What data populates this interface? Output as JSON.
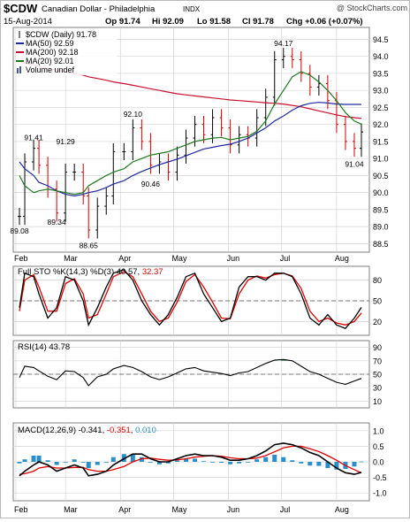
{
  "header": {
    "symbol": "$CDW",
    "name": "Canadian Dollar - Philadelphia",
    "exchange": "INDX",
    "watermark": "@ StockCharts.com",
    "date": "15-Aug-2014",
    "quote": {
      "op": "Op 91.74",
      "hi": "Hi 92.09",
      "lo": "Lo 91.58",
      "cl": "Cl 91.78",
      "chg": "Chg +0.06 (+0.07%)"
    }
  },
  "colors": {
    "price": "#000000",
    "up": "#000000",
    "down": "#cc0000",
    "ma50": "#1f2a9e",
    "ma200": "#c8102e",
    "ma20": "#1d7a1d",
    "stoK": "#000000",
    "stoD": "#e00000",
    "rsi": "#000000",
    "rsiFill": "#2e8b57",
    "macd": "#000000",
    "signal": "#e00000",
    "hist": "#2a8fc9",
    "grid": "#d4d4d4"
  },
  "legend": [
    {
      "key": "price",
      "text": "$CDW (Daily) 91.78",
      "color": "#000000",
      "icon": "candle-icon"
    },
    {
      "key": "ma50",
      "text": "MA(50) 92.59",
      "color": "#1f2a9e",
      "icon": "line-icon"
    },
    {
      "key": "ma200",
      "text": "MA(200) 92.18",
      "color": "#c8102e",
      "icon": "line-icon"
    },
    {
      "key": "ma20",
      "text": "MA(20) 92.01",
      "color": "#1d7a1d",
      "icon": "line-icon"
    },
    {
      "key": "volume",
      "text": "Volume undef",
      "color": "#4a5a86",
      "icon": "volume-bars-icon"
    }
  ],
  "sto_label": {
    "prefix": "Full STO %K(14,3) %D(3) ",
    "k": "40.57",
    "sep": ", ",
    "d": "32.37"
  },
  "rsi_label": "RSI(14) 43.78",
  "macd_label": {
    "prefix": "MACD(12,26,9) ",
    "macd": "-0.341",
    "sep1": ", ",
    "signal": "-0.351",
    "sep2": ", ",
    "hist": "0.010"
  },
  "chart_data": {
    "type": "line",
    "dates": [
      "2014-02-03",
      "2014-02-06",
      "2014-02-11",
      "2014-02-14",
      "2014-02-19",
      "2014-02-24",
      "2014-03-01",
      "2014-03-06",
      "2014-03-11",
      "2014-03-14",
      "2014-03-19",
      "2014-03-24",
      "2014-03-28",
      "2014-04-03",
      "2014-04-08",
      "2014-04-13",
      "2014-04-18",
      "2014-04-23",
      "2014-04-28",
      "2014-05-03",
      "2014-05-08",
      "2014-05-13",
      "2014-05-18",
      "2014-05-23",
      "2014-05-28",
      "2014-06-02",
      "2014-06-07",
      "2014-06-12",
      "2014-06-17",
      "2014-06-22",
      "2014-06-27",
      "2014-07-02",
      "2014-07-07",
      "2014-07-12",
      "2014-07-17",
      "2014-07-22",
      "2014-07-27",
      "2014-08-01",
      "2014-08-06",
      "2014-08-11",
      "2014-08-15"
    ],
    "x_ticks": [
      "Feb",
      "Mar",
      "Apr",
      "May",
      "Jun",
      "Jul",
      "Aug"
    ],
    "price_panel": {
      "y_ticks": [
        88.5,
        89.0,
        89.5,
        90.0,
        90.5,
        91.0,
        91.5,
        92.0,
        92.5,
        93.0,
        93.5,
        94.0,
        94.5
      ],
      "ylim": [
        88.25,
        94.85
      ],
      "annotations": [
        {
          "date": "2014-02-03",
          "value": 89.08,
          "label": "89.08"
        },
        {
          "date": "2014-02-11",
          "value": 91.41,
          "label": "91.41"
        },
        {
          "date": "2014-02-24",
          "value": 89.34,
          "label": "89.34"
        },
        {
          "date": "2014-03-01",
          "value": 91.29,
          "label": "91.29"
        },
        {
          "date": "2014-03-14",
          "value": 88.65,
          "label": "88.65"
        },
        {
          "date": "2014-04-08",
          "value": 92.1,
          "label": "92.10"
        },
        {
          "date": "2014-04-18",
          "value": 90.46,
          "label": "90.46"
        },
        {
          "date": "2014-07-02",
          "value": 94.17,
          "label": "94.17"
        },
        {
          "date": "2014-08-11",
          "value": 91.04,
          "label": "91.04"
        }
      ],
      "close": [
        89.3,
        90.9,
        91.3,
        90.8,
        90.1,
        89.4,
        90.6,
        90.6,
        89.9,
        88.9,
        89.6,
        89.9,
        91.2,
        91.2,
        91.9,
        91.5,
        90.8,
        90.9,
        90.6,
        91.1,
        91.6,
        92.0,
        91.7,
        92.2,
        91.9,
        91.4,
        91.7,
        91.6,
        92.2,
        92.8,
        93.9,
        94.0,
        93.9,
        93.5,
        93.1,
        93.2,
        92.7,
        92.0,
        91.5,
        91.3,
        91.78
      ],
      "ma50": [
        90.9,
        90.7,
        90.5,
        90.3,
        90.2,
        90.05,
        89.95,
        89.9,
        89.95,
        90.0,
        90.05,
        90.15,
        90.25,
        90.35,
        90.5,
        90.62,
        90.72,
        90.82,
        90.9,
        90.98,
        91.08,
        91.18,
        91.28,
        91.33,
        91.38,
        91.42,
        91.5,
        91.6,
        91.75,
        91.9,
        92.1,
        92.25,
        92.42,
        92.55,
        92.62,
        92.65,
        92.63,
        92.6,
        92.59,
        92.59,
        92.59
      ],
      "ma200": [
        93.85,
        93.8,
        93.75,
        93.7,
        93.65,
        93.6,
        93.55,
        93.5,
        93.45,
        93.4,
        93.35,
        93.3,
        93.25,
        93.2,
        93.15,
        93.1,
        93.05,
        93.0,
        92.95,
        92.9,
        92.87,
        92.84,
        92.81,
        92.78,
        92.75,
        92.72,
        92.7,
        92.68,
        92.66,
        92.64,
        92.62,
        92.6,
        92.56,
        92.52,
        92.46,
        92.4,
        92.34,
        92.28,
        92.23,
        92.2,
        92.18
      ],
      "ma20": [
        90.5,
        90.2,
        90.0,
        90.05,
        90.1,
        90.05,
        90.0,
        89.95,
        90.0,
        90.2,
        90.35,
        90.5,
        90.6,
        90.7,
        90.9,
        91.0,
        91.1,
        91.15,
        91.2,
        91.3,
        91.4,
        91.5,
        91.55,
        91.6,
        91.62,
        91.55,
        91.6,
        91.65,
        91.8,
        92.1,
        92.6,
        93.0,
        93.4,
        93.55,
        93.45,
        93.25,
        93.0,
        92.7,
        92.35,
        92.1,
        92.01
      ]
    },
    "sto_panel": {
      "y_ticks": [
        20,
        50,
        80
      ],
      "ylim": [
        0,
        100
      ],
      "k": [
        40,
        90,
        85,
        60,
        25,
        40,
        85,
        80,
        50,
        15,
        40,
        70,
        90,
        95,
        80,
        50,
        30,
        15,
        30,
        55,
        85,
        90,
        60,
        40,
        20,
        25,
        70,
        85,
        85,
        80,
        90,
        90,
        85,
        60,
        25,
        15,
        30,
        15,
        10,
        25,
        40.57
      ],
      "d": [
        35,
        80,
        88,
        70,
        35,
        35,
        75,
        82,
        60,
        25,
        30,
        60,
        85,
        92,
        85,
        60,
        35,
        20,
        25,
        48,
        78,
        88,
        70,
        48,
        25,
        24,
        60,
        80,
        86,
        83,
        88,
        90,
        86,
        68,
        35,
        20,
        25,
        18,
        15,
        20,
        32.37
      ]
    },
    "rsi_panel": {
      "y_ticks": [
        10,
        30,
        50,
        70,
        90
      ],
      "ylim": [
        0,
        100
      ],
      "overbought": 70,
      "oversold": 30,
      "values": [
        45,
        62,
        60,
        55,
        47,
        42,
        55,
        54,
        45,
        33,
        46,
        50,
        58,
        63,
        60,
        54,
        46,
        42,
        46,
        52,
        58,
        60,
        55,
        53,
        51,
        48,
        52,
        54,
        60,
        66,
        71,
        72,
        70,
        62,
        54,
        50,
        44,
        38,
        35,
        40,
        43.78
      ]
    },
    "macd_panel": {
      "y_ticks": [
        -1.0,
        -0.5,
        0.0,
        0.5,
        1.0
      ],
      "ylim": [
        -1.25,
        1.25
      ],
      "macd": [
        -0.45,
        -0.3,
        -0.1,
        0.0,
        -0.1,
        -0.3,
        -0.2,
        -0.1,
        -0.2,
        -0.45,
        -0.4,
        -0.3,
        -0.1,
        0.1,
        0.25,
        0.25,
        0.1,
        0.0,
        0.0,
        0.1,
        0.2,
        0.25,
        0.2,
        0.2,
        0.15,
        0.05,
        0.05,
        0.1,
        0.2,
        0.35,
        0.55,
        0.6,
        0.55,
        0.45,
        0.3,
        0.2,
        0.0,
        -0.2,
        -0.35,
        -0.4,
        -0.341
      ],
      "signal": [
        -0.4,
        -0.38,
        -0.3,
        -0.2,
        -0.15,
        -0.2,
        -0.2,
        -0.18,
        -0.18,
        -0.25,
        -0.3,
        -0.3,
        -0.25,
        -0.15,
        0.0,
        0.1,
        0.12,
        0.08,
        0.05,
        0.06,
        0.1,
        0.15,
        0.18,
        0.2,
        0.18,
        0.13,
        0.1,
        0.1,
        0.12,
        0.2,
        0.32,
        0.45,
        0.5,
        0.5,
        0.42,
        0.33,
        0.2,
        0.05,
        -0.12,
        -0.25,
        -0.351
      ]
    }
  }
}
